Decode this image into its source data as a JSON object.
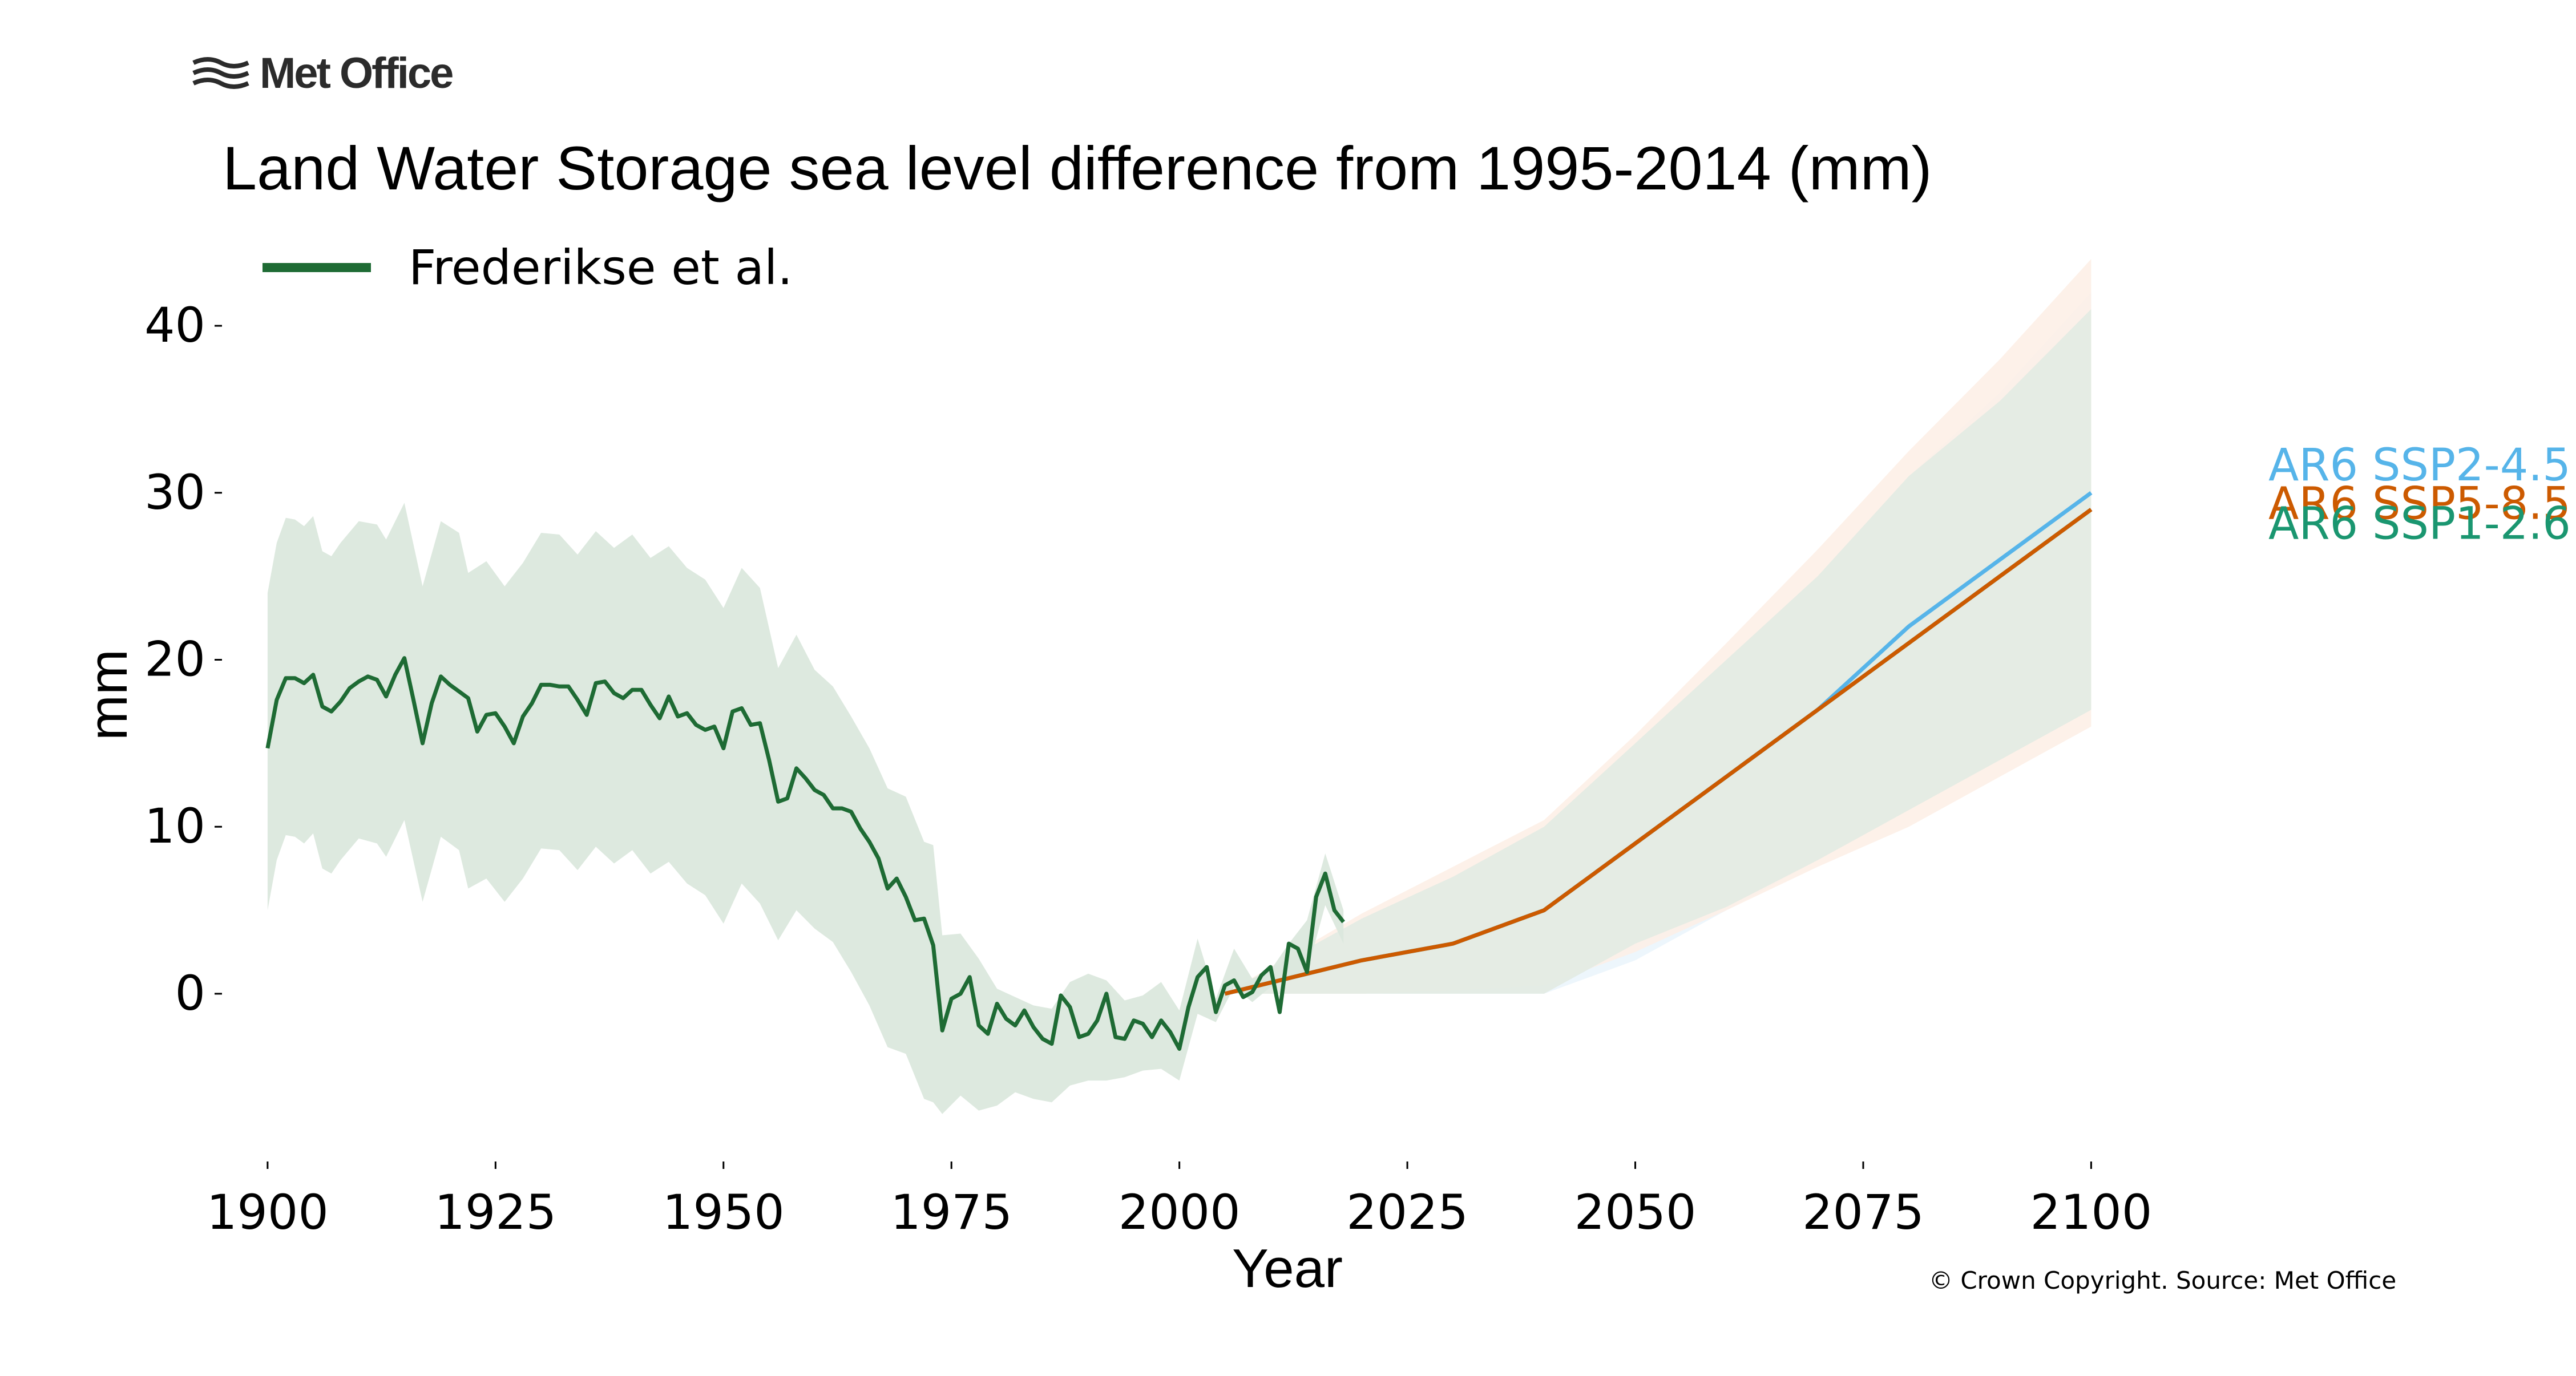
{
  "branding": {
    "logo_text": "Met Office",
    "logo_icon": "met-office-wave-icon"
  },
  "copyright": "© Crown Copyright. Source: Met Office",
  "colors": {
    "observed": "#1e6b34",
    "observed_band": "#dbe8dd",
    "ssp126": "#1a9670",
    "ssp245": "#56b4e9",
    "ssp585": "#cc5a00",
    "band_ssp245": "#eaf5fc",
    "band_ssp585": "#fdeee5",
    "band_ssp126": "#e4ebe4"
  },
  "chart_data": {
    "type": "line",
    "title": "Land Water Storage sea level difference from 1995-2014 (mm)",
    "xlabel": "Year",
    "ylabel": "mm",
    "xlim": [
      1895,
      2118
    ],
    "ylim": [
      -9.5,
      44
    ],
    "xticks": [
      1900,
      1925,
      1950,
      1975,
      2000,
      2025,
      2050,
      2075,
      2100
    ],
    "yticks": [
      0,
      10,
      20,
      30,
      40
    ],
    "legend": {
      "position": "top-left",
      "entries": [
        "Frederikse et al."
      ]
    },
    "observed": {
      "name": "Frederikse et al.",
      "x": [
        1900,
        1901,
        1902,
        1903,
        1904,
        1905,
        1906,
        1907,
        1908,
        1909,
        1910,
        1911,
        1912,
        1913,
        1914,
        1915,
        1916,
        1917,
        1918,
        1919,
        1920,
        1921,
        1922,
        1923,
        1924,
        1925,
        1926,
        1927,
        1928,
        1929,
        1930,
        1931,
        1932,
        1933,
        1934,
        1935,
        1936,
        1937,
        1938,
        1939,
        1940,
        1941,
        1942,
        1943,
        1944,
        1945,
        1946,
        1947,
        1948,
        1949,
        1950,
        1951,
        1952,
        1953,
        1954,
        1955,
        1956,
        1957,
        1958,
        1959,
        1960,
        1961,
        1962,
        1963,
        1964,
        1965,
        1966,
        1967,
        1968,
        1969,
        1970,
        1971,
        1972,
        1973,
        1974,
        1975,
        1976,
        1977,
        1978,
        1979,
        1980,
        1981,
        1982,
        1983,
        1984,
        1985,
        1986,
        1987,
        1988,
        1989,
        1990,
        1991,
        1992,
        1993,
        1994,
        1995,
        1996,
        1997,
        1998,
        1999,
        2000,
        2001,
        2002,
        2003,
        2004,
        2005,
        2006,
        2007,
        2008,
        2009,
        2010,
        2011,
        2012,
        2013,
        2014,
        2015,
        2016,
        2017,
        2018
      ],
      "values": [
        14.7,
        17.6,
        18.9,
        18.9,
        18.6,
        19.1,
        17.2,
        16.9,
        17.5,
        18.3,
        18.7,
        19.0,
        18.8,
        17.8,
        19.1,
        20.1,
        17.6,
        15.0,
        17.4,
        19.0,
        18.5,
        18.1,
        17.7,
        15.7,
        16.7,
        16.8,
        16.0,
        15.0,
        16.6,
        17.4,
        18.5,
        18.5,
        18.4,
        18.4,
        17.6,
        16.7,
        18.6,
        18.7,
        18.0,
        17.7,
        18.2,
        18.2,
        17.3,
        16.5,
        17.8,
        16.6,
        16.8,
        16.1,
        15.8,
        16.0,
        14.7,
        16.9,
        17.1,
        16.1,
        16.2,
        14.0,
        11.5,
        11.7,
        13.5,
        12.9,
        12.2,
        11.9,
        11.1,
        11.1,
        10.9,
        9.9,
        9.1,
        8.1,
        6.3,
        6.9,
        5.8,
        4.4,
        4.5,
        2.9,
        -2.2,
        -0.3,
        0.0,
        1.0,
        -1.9,
        -2.4,
        -0.6,
        -1.5,
        -1.9,
        -1.0,
        -2.0,
        -2.7,
        -3.0,
        -0.1,
        -0.8,
        -2.6,
        -2.4,
        -1.6,
        0.0,
        -2.6,
        -2.7,
        -1.6,
        -1.8,
        -2.6,
        -1.6,
        -2.3,
        -3.3,
        -0.8,
        1.0,
        1.6,
        -1.1,
        0.5,
        0.8,
        -0.2,
        0.1,
        1.1,
        1.6,
        -1.1,
        3.0,
        2.7,
        1.3,
        5.8,
        7.2,
        5.0,
        4.3
      ],
      "band_x": [
        1900,
        1901,
        1902,
        1903,
        1904,
        1905,
        1906,
        1907,
        1908,
        1910,
        1912,
        1913,
        1915,
        1917,
        1919,
        1921,
        1922,
        1924,
        1926,
        1928,
        1930,
        1932,
        1934,
        1936,
        1938,
        1940,
        1942,
        1944,
        1946,
        1948,
        1950,
        1952,
        1954,
        1956,
        1958,
        1960,
        1962,
        1964,
        1966,
        1968,
        1970,
        1972,
        1973,
        1974,
        1976,
        1978,
        1980,
        1982,
        1984,
        1986,
        1988,
        1990,
        1992,
        1994,
        1996,
        1998,
        2000,
        2002,
        2004,
        2006,
        2008,
        2010,
        2012,
        2014,
        2016,
        2018
      ],
      "band_upper": [
        24,
        27,
        28.5,
        28.4,
        28,
        28.6,
        26.5,
        26.2,
        27,
        28.3,
        28.1,
        27.2,
        29.4,
        24.4,
        28.3,
        27.6,
        25.2,
        25.9,
        24.4,
        25.8,
        27.6,
        27.5,
        26.3,
        27.7,
        26.7,
        27.5,
        26.1,
        26.8,
        25.5,
        24.8,
        23.1,
        25.5,
        24.3,
        19.5,
        21.5,
        19.4,
        18.4,
        16.6,
        14.7,
        12.3,
        11.8,
        9.1,
        8.9,
        3.5,
        3.6,
        2.1,
        0.3,
        -0.2,
        -0.7,
        -0.9,
        0.7,
        1.2,
        0.8,
        -0.4,
        -0.1,
        0.7,
        -1.0,
        3.3,
        -0.3,
        2.7,
        0.9,
        1.4,
        3.0,
        4.4,
        8.4,
        5.0
      ],
      "band_lower": [
        5,
        8,
        9.5,
        9.4,
        9.0,
        9.6,
        7.5,
        7.2,
        8.0,
        9.3,
        9.0,
        8.2,
        10.4,
        5.5,
        9.4,
        8.6,
        6.3,
        6.9,
        5.5,
        6.9,
        8.7,
        8.6,
        7.4,
        8.8,
        7.8,
        8.6,
        7.2,
        7.9,
        6.6,
        5.9,
        4.2,
        6.6,
        5.4,
        3.2,
        5.0,
        3.9,
        3.1,
        1.3,
        -0.7,
        -3.2,
        -3.6,
        -6.3,
        -6.5,
        -7.2,
        -6.1,
        -7.0,
        -6.7,
        -5.9,
        -6.3,
        -6.5,
        -5.5,
        -5.2,
        -5.2,
        -5.0,
        -4.6,
        -4.5,
        -5.2,
        -1.2,
        -1.7,
        0.4,
        -0.5,
        0.4,
        1.0,
        1.3,
        5.3,
        3.0
      ]
    },
    "projections": [
      {
        "name": "AR6 SSP2-4.5",
        "key": "ssp245",
        "x": [
          2005,
          2020,
          2030,
          2040,
          2050,
          2060,
          2070,
          2080,
          2090,
          2100
        ],
        "values": [
          0,
          2,
          3,
          5,
          9,
          13,
          17,
          22,
          26,
          30
        ],
        "upper": [
          0,
          4.5,
          7,
          10,
          15,
          20,
          25,
          31,
          36,
          42
        ],
        "lower": [
          0,
          0,
          0,
          0,
          2,
          5,
          8,
          11,
          14,
          17
        ]
      },
      {
        "name": "AR6 SSP5-8.5",
        "key": "ssp585",
        "x": [
          2005,
          2020,
          2030,
          2040,
          2050,
          2060,
          2070,
          2080,
          2090,
          2100
        ],
        "values": [
          0,
          2,
          3,
          5,
          9,
          13,
          17,
          21,
          25,
          29
        ],
        "upper": [
          0,
          4.8,
          7.6,
          10.4,
          15.5,
          21,
          26.6,
          32.5,
          38,
          44
        ],
        "lower": [
          0,
          0,
          0.2,
          0.5,
          2.5,
          5,
          7.6,
          10,
          13,
          16
        ]
      },
      {
        "name": "AR6 SSP1-2.6",
        "key": "ssp126",
        "x": [
          2005,
          2020,
          2030,
          2040,
          2050,
          2060,
          2070,
          2080,
          2090,
          2100
        ],
        "values": [
          0,
          2,
          3,
          5,
          9,
          13,
          17,
          21,
          25,
          29
        ],
        "upper": [
          0,
          4.5,
          7,
          10,
          15,
          20,
          25,
          31,
          35.5,
          41
        ],
        "lower": [
          0,
          0,
          0,
          0,
          3,
          5.2,
          8,
          11,
          14,
          17
        ]
      }
    ],
    "end_labels": [
      {
        "text": "AR6 SSP2-4.5",
        "key": "ssp245",
        "y": 31.7
      },
      {
        "text": "AR6 SSP5-8.5",
        "key": "ssp585",
        "y": 29.4
      },
      {
        "text": "AR6 SSP1-2.6",
        "key": "ssp126",
        "y": 28.2
      }
    ]
  }
}
